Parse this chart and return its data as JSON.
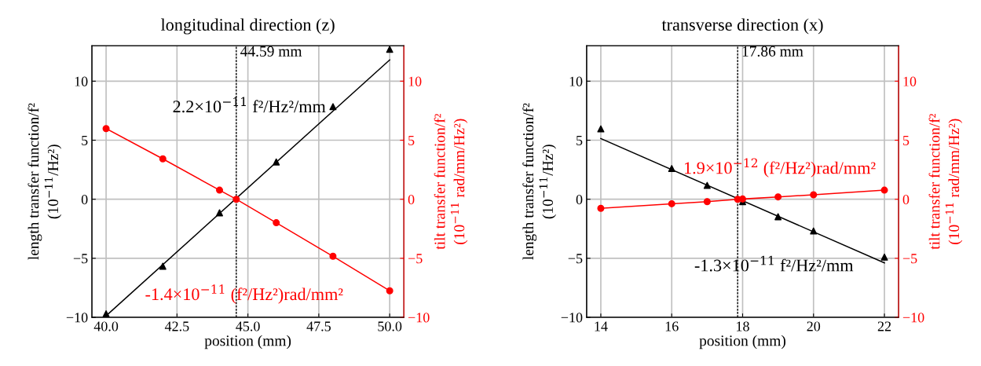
{
  "chart_data": [
    {
      "type": "scatter",
      "title": "longitudinal direction (z)",
      "xlabel": "position (mm)",
      "ylabel": "length transfer function/f²\n(10$^{−11}$/Hz²)",
      "y2label": "tilt transfer function/f²\n(10$^{−11}$ rad/mm/Hz²)",
      "series": [
        {
          "color": "#000000",
          "marker": "triangle",
          "x": [
            40,
            42,
            44,
            46,
            48,
            50
          ],
          "values": [
            -9.7,
            -5.67,
            -1.15,
            3.16,
            7.84,
            12.7
          ]
        },
        {
          "type": "line",
          "name": "2.2×10$^{−11}$ f²/Hz²/mm",
          "color": "#000000",
          "marker": "none",
          "x": [
            40,
            50
          ],
          "values": [
            -9.87,
            11.8
          ]
        },
        {
          "type": "line",
          "name": "-1.4×10$^{−11}$ (f²/Hz²)rad/mm²",
          "color": "#ff0000",
          "marker": "circle",
          "axis": "y2",
          "x": [
            40,
            42,
            44,
            44.59,
            46,
            48,
            50
          ],
          "values": [
            5.98,
            3.42,
            0.77,
            0,
            -1.99,
            -4.83,
            -7.75
          ]
        }
      ],
      "xlim": [
        39.5,
        50.5
      ],
      "xticks": [
        {
          "value": 40,
          "label": "40.0"
        },
        {
          "value": 42.5,
          "label": "42.5"
        },
        {
          "value": 45,
          "label": "45.0"
        },
        {
          "value": 47.5,
          "label": "47.5"
        },
        {
          "value": 50,
          "label": "50.0"
        }
      ],
      "ylim": [
        -10,
        13
      ],
      "yticks": [
        -10,
        -5,
        0,
        5,
        10
      ],
      "y2lim": [
        -10,
        13
      ],
      "y2ticks": [
        -10,
        -5,
        0,
        5,
        10
      ],
      "ref_lines": [
        {
          "axis": "x",
          "value": 44.59,
          "label": "44.59 mm",
          "color": "#000000",
          "line_style": "dashed"
        }
      ],
      "grid": true
    },
    {
      "type": "scatter",
      "title": "transverse direction (x)",
      "xlabel": "position (mm)",
      "ylabel": "length transfer function/f²\n(10$^{−11}$/Hz²)",
      "y2label": "tilt transfer function/f²\n(10$^{−11}$ rad/mm/Hz²)",
      "series": [
        {
          "color": "#000000",
          "marker": "triangle",
          "x": [
            14,
            16,
            17,
            18,
            19,
            20,
            22
          ],
          "values": [
            5.96,
            2.6,
            1.17,
            -0.2,
            -1.48,
            -2.69,
            -4.9
          ]
        },
        {
          "type": "line",
          "name": "-1.3×10$^{−11}$ f²/Hz²/mm",
          "color": "#000000",
          "marker": "none",
          "x": [
            14,
            22
          ],
          "values": [
            5.14,
            -5.39
          ]
        },
        {
          "type": "line",
          "name": "1.9×10$^{−12}$ (f²/Hz²)rad/mm²",
          "color": "#ff0000",
          "marker": "circle",
          "axis": "y2",
          "x": [
            14,
            16,
            17,
            17.86,
            18,
            19,
            20,
            22
          ],
          "values": [
            -0.77,
            -0.38,
            -0.2,
            0,
            0.02,
            0.2,
            0.38,
            0.77
          ]
        }
      ],
      "xlim": [
        13.6,
        22.4
      ],
      "xticks": [
        14,
        16,
        18,
        20,
        22
      ],
      "ylim": [
        -10,
        13
      ],
      "yticks": [
        -10,
        -5,
        0,
        5,
        10
      ],
      "y2lim": [
        -10,
        13
      ],
      "y2ticks": [
        -10,
        -5,
        0,
        5,
        10
      ],
      "ref_lines": [
        {
          "axis": "x",
          "value": 17.86,
          "label": "17.86 mm",
          "color": "#000000",
          "line_style": "dashed"
        }
      ],
      "grid": true
    }
  ]
}
